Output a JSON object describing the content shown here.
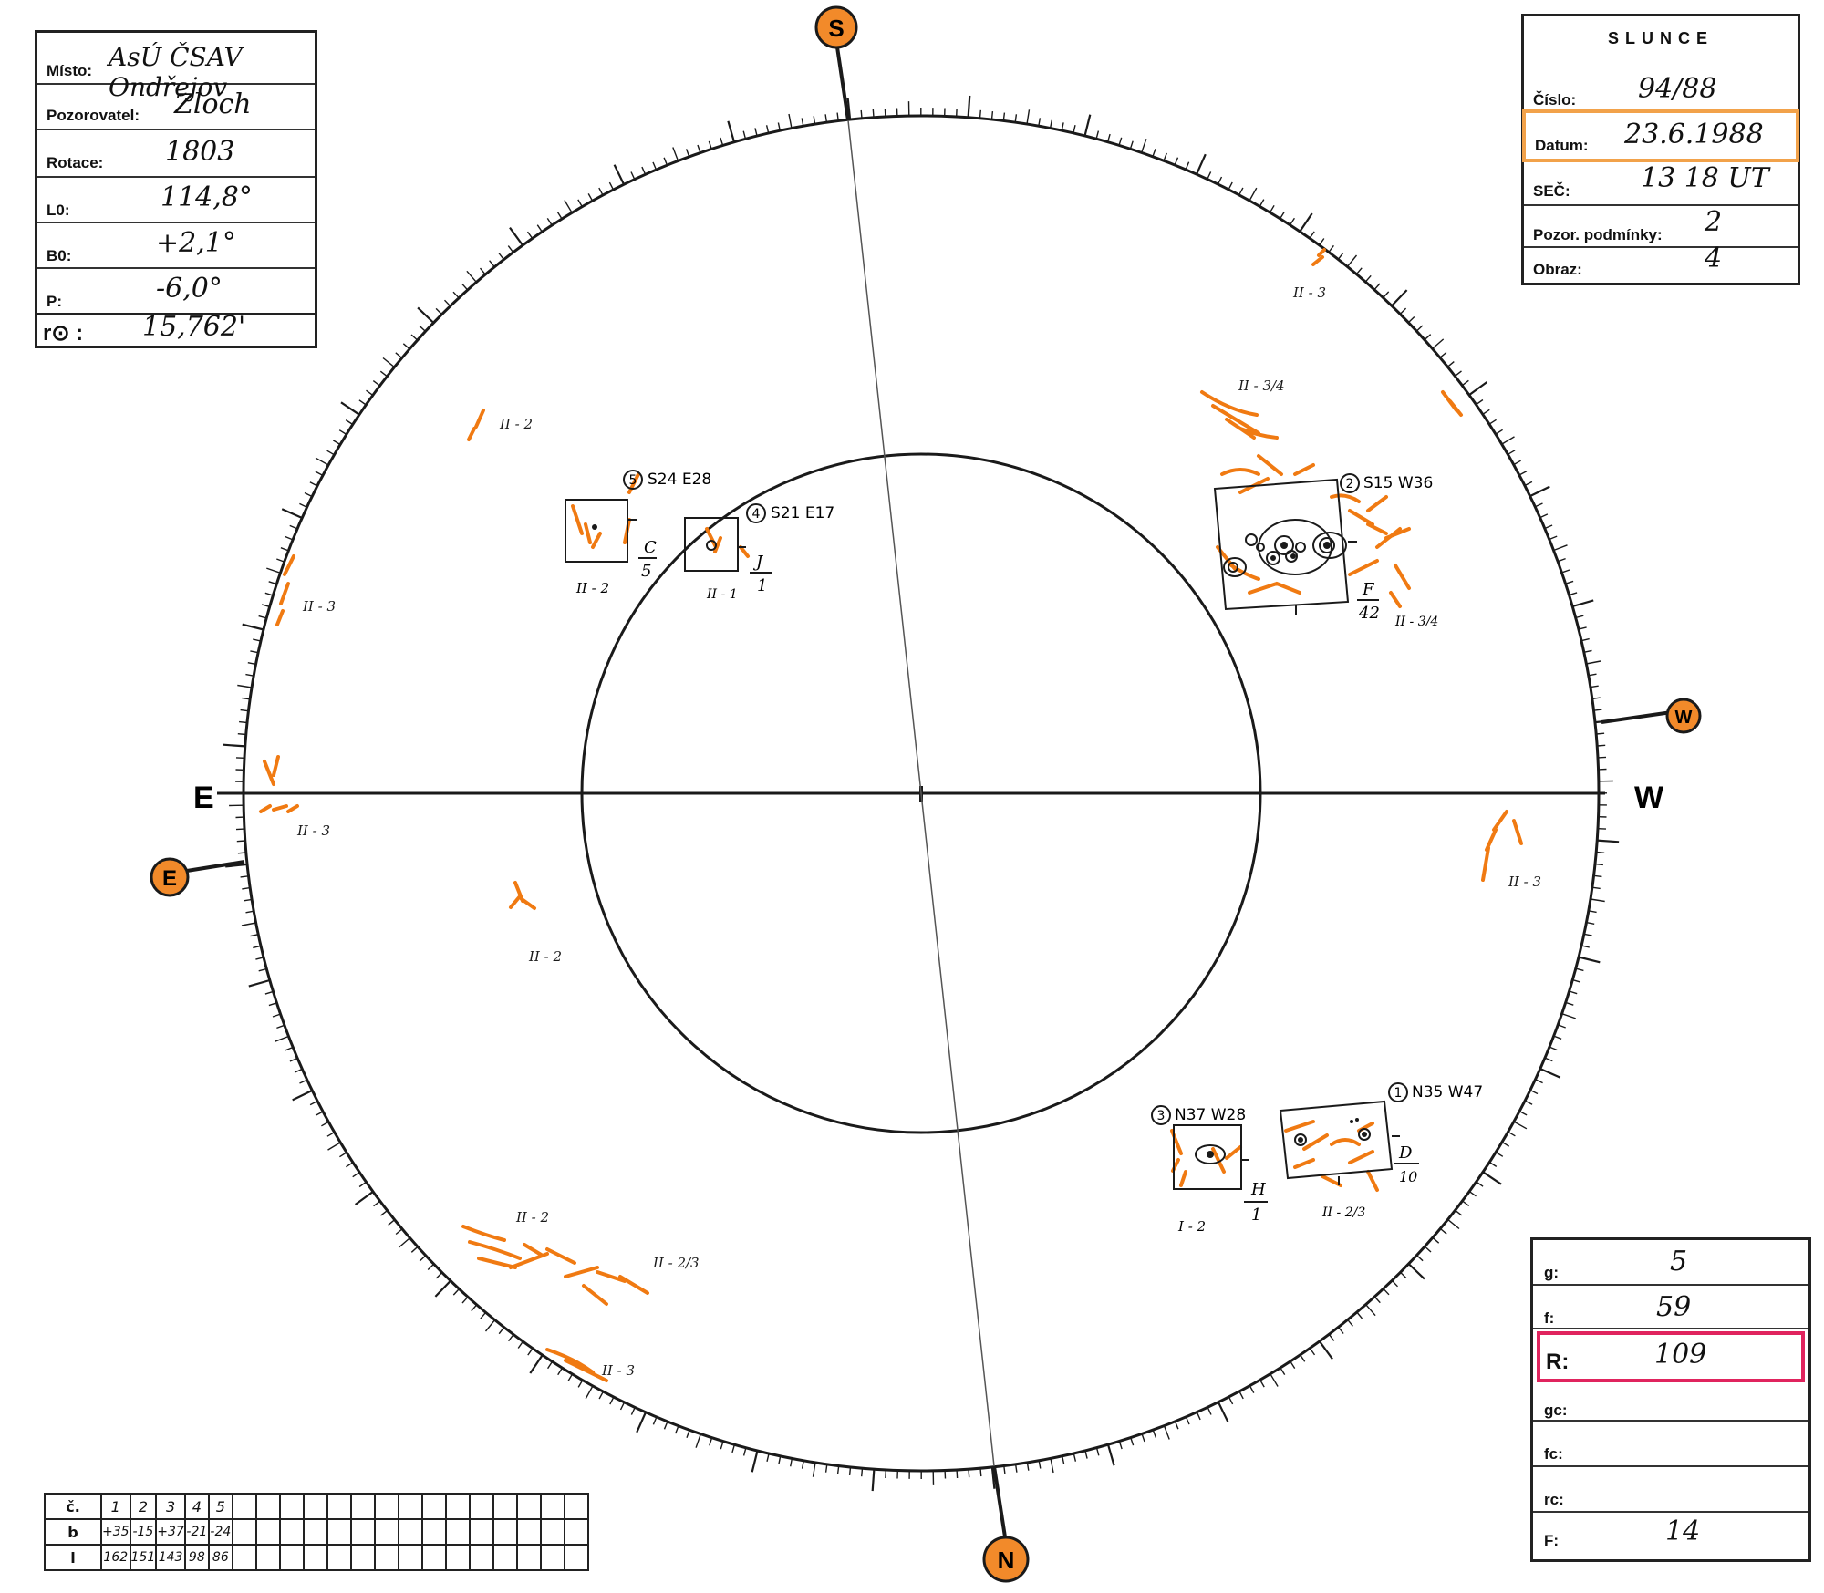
{
  "left_box": {
    "rows": [
      {
        "label": "Místo:",
        "value": "AsÚ ČSAV Ondřejov"
      },
      {
        "label": "Pozorovatel:",
        "value": "Zloch"
      },
      {
        "label": "Rotace:",
        "value": "1803"
      },
      {
        "label": "L0:",
        "value": "114,8°"
      },
      {
        "label": "B0:",
        "value": "+2,1°"
      },
      {
        "label": "P:",
        "value": "-6,0°"
      },
      {
        "label": "r⊙ :",
        "value": "15,762'"
      }
    ]
  },
  "right_box": {
    "title": "SLUNCE",
    "rows": [
      {
        "label": "Číslo:",
        "value": "94/88"
      },
      {
        "label": "Datum:",
        "value": "23.6.1988"
      },
      {
        "label": "SEČ:",
        "value": "13 18 UT"
      },
      {
        "label": "Pozor. podmínky:",
        "value": "2"
      },
      {
        "label": "Obraz:",
        "value": "4"
      }
    ],
    "highlight_color": "#f2a24a"
  },
  "stats_box": {
    "rows": [
      {
        "label": "g:",
        "value": "5"
      },
      {
        "label": "f:",
        "value": "59"
      },
      {
        "label": "R:",
        "value": "109"
      },
      {
        "label": "gc:",
        "value": ""
      },
      {
        "label": "fc:",
        "value": ""
      },
      {
        "label": "rc:",
        "value": ""
      },
      {
        "label": "F:",
        "value": "14"
      }
    ],
    "highlight_color": "#e0245e"
  },
  "table": {
    "rows": [
      {
        "head": "č.",
        "cells": [
          "1",
          "2",
          "3",
          "4",
          "5"
        ]
      },
      {
        "head": "b",
        "cells": [
          "+35",
          "-15",
          "+37",
          "-21",
          "-24"
        ]
      },
      {
        "head": "l",
        "cells": [
          "162",
          "151",
          "143",
          "98",
          "86"
        ]
      }
    ],
    "empty_cols": 15
  },
  "compass": {
    "top": "S",
    "bottom": "N",
    "left_marker": "E",
    "right_marker": "W",
    "axis_left": "E",
    "axis_right": "W",
    "marker_color": "#f28a2a"
  },
  "groups": [
    {
      "num": "5",
      "pos": "S24 E28",
      "class": "C",
      "count": "5",
      "note": "II - 2"
    },
    {
      "num": "4",
      "pos": "S21 E17",
      "class": "J",
      "count": "1",
      "note": "II - 1"
    },
    {
      "num": "2",
      "pos": "S15 W36",
      "class": "F",
      "count": "42",
      "note": "II - 3/4"
    },
    {
      "num": "3",
      "pos": "N37 W28",
      "class": "H",
      "count": "1",
      "note": "I - 2"
    },
    {
      "num": "1",
      "pos": "N35 W47",
      "class": "D",
      "count": "10",
      "note": "II - 2/3"
    }
  ],
  "faculae_labels": [
    "II - 3",
    "II - 3/4",
    "II - 2",
    "II - 3",
    "II - 3",
    "II - 3",
    "II - 2",
    "II - 2",
    "II - 2/3",
    "II - 3",
    "II - 3/4"
  ],
  "colors": {
    "facula": "#f07a12",
    "ink": "#1a1a1a"
  }
}
